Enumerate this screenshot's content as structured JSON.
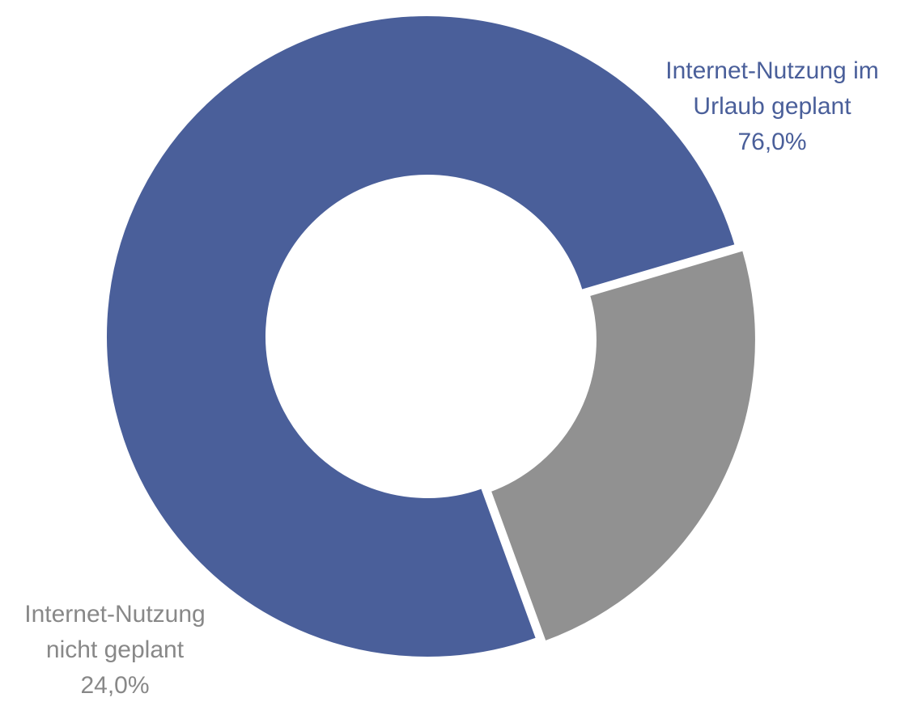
{
  "chart_data": {
    "type": "pie",
    "donut": true,
    "categories": [
      "Internet-Nutzung im Urlaub geplant",
      "Internet-Nutzung nicht geplant"
    ],
    "values": [
      76.0,
      24.0
    ],
    "colors": [
      "#4a5f9a",
      "#919191"
    ],
    "data_labels": [
      {
        "lines": [
          "Internet-Nutzung im",
          "Urlaub geplant"
        ],
        "value": "76,0%",
        "color": "#4a5f9a"
      },
      {
        "lines": [
          "Internet-Nutzung",
          "nicht geplant"
        ],
        "value": "24,0%",
        "color": "#888888"
      }
    ],
    "legend": "none"
  }
}
